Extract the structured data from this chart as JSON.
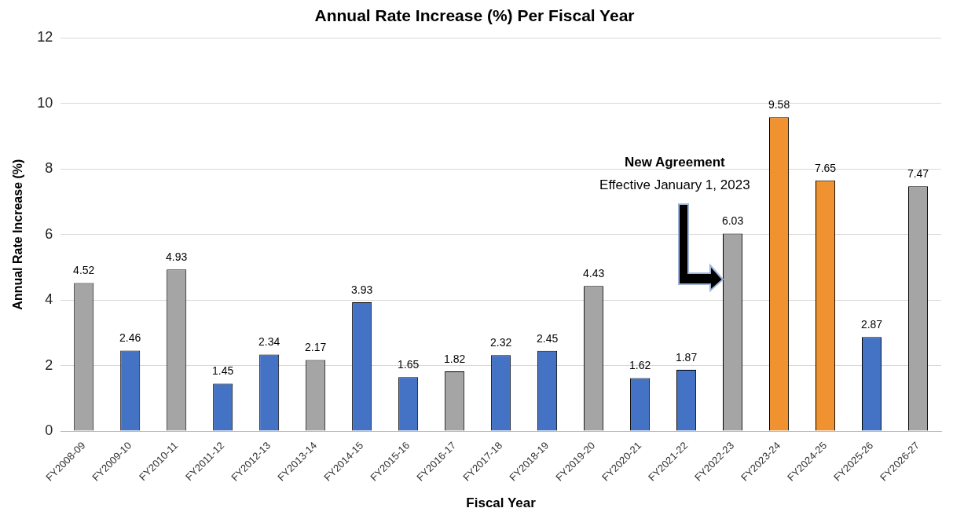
{
  "chart_data": {
    "type": "bar",
    "title": "Annual Rate Increase (%) Per Fiscal Year",
    "xlabel": "Fiscal Year",
    "ylabel": "Annual Rate Increase (%)",
    "categories": [
      "FY2008-09",
      "FY2009-10",
      "FY2010-11",
      "FY2011-12",
      "FY2012-13",
      "FY2013-14",
      "FY2014-15",
      "FY2015-16",
      "FY2016-17",
      "FY2017-18",
      "FY2018-19",
      "FY2019-20",
      "FY2020-21",
      "FY2021-22",
      "FY2022-23",
      "FY2023-24",
      "FY2024-25",
      "FY2025-26",
      "FY2026-27"
    ],
    "values": [
      4.52,
      2.46,
      4.93,
      1.45,
      2.34,
      2.17,
      3.93,
      1.65,
      1.82,
      2.32,
      2.45,
      4.43,
      1.62,
      1.87,
      6.03,
      9.58,
      7.65,
      2.87,
      7.47
    ],
    "colors": [
      "#a5a5a5",
      "#4472c4",
      "#a5a5a5",
      "#4472c4",
      "#4472c4",
      "#a5a5a5",
      "#4472c4",
      "#4472c4",
      "#a5a5a5",
      "#4472c4",
      "#4472c4",
      "#a5a5a5",
      "#4472c4",
      "#4472c4",
      "#a5a5a5",
      "#f0922f",
      "#f0922f",
      "#4472c4",
      "#a5a5a5"
    ],
    "ylim": [
      0,
      12
    ],
    "yticks": [
      0,
      2,
      4,
      6,
      8,
      10,
      12
    ],
    "grid": "y",
    "legend": false,
    "data_labels": true,
    "annotations": [
      "New Agreement",
      "Effective January 1, 2023"
    ]
  }
}
